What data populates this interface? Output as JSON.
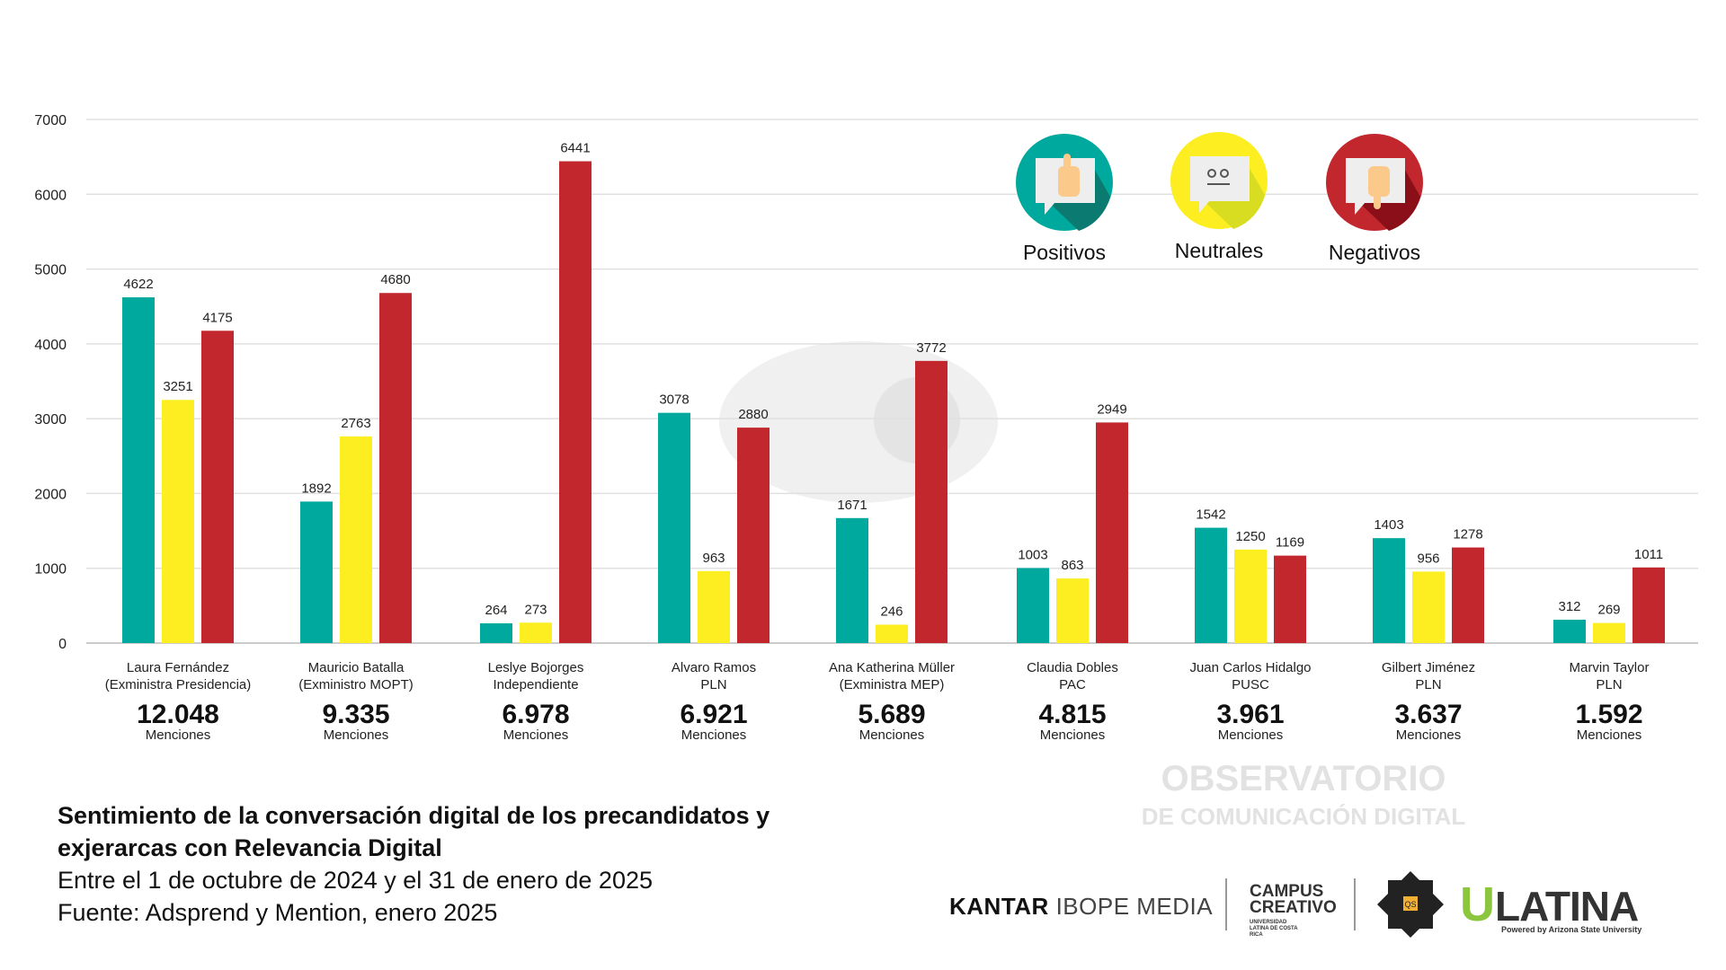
{
  "chart_data": {
    "type": "bar",
    "title": "Sentimiento de la conversación digital de los precandidatos y exjerarcas con Relevancia Digital",
    "subtitle_lines": [
      "Entre el 1 de octubre de 2024 y el 31 de enero de 2025",
      "Fuente: Adsprend y Mention, enero 2025"
    ],
    "ylim": [
      0,
      7000
    ],
    "yticks": [
      0,
      1000,
      2000,
      3000,
      4000,
      5000,
      6000,
      7000
    ],
    "grid": true,
    "legend_position": "top-right",
    "categories": [
      {
        "name": "Laura Fernández",
        "sub": "(Exministra Presidencia)",
        "total": "12.048"
      },
      {
        "name": "Mauricio Batalla",
        "sub": "(Exministro MOPT)",
        "total": "9.335"
      },
      {
        "name": "Leslye Bojorges",
        "sub": "Independiente",
        "total": "6.978"
      },
      {
        "name": "Alvaro Ramos",
        "sub": "PLN",
        "total": "6.921"
      },
      {
        "name": "Ana Katherina Müller",
        "sub": "(Exministra MEP)",
        "total": "5.689"
      },
      {
        "name": "Claudia Dobles",
        "sub": "PAC",
        "total": "4.815"
      },
      {
        "name": "Juan Carlos Hidalgo",
        "sub": "PUSC",
        "total": "3.961"
      },
      {
        "name": "Gilbert Jiménez",
        "sub": "PLN",
        "total": "3.637"
      },
      {
        "name": "Marvin Taylor",
        "sub": "PLN",
        "total": "1.592"
      }
    ],
    "total_unit": "Menciones",
    "series": [
      {
        "name": "Positivos",
        "color": "#00a99d",
        "values": [
          4622,
          1892,
          264,
          3078,
          1671,
          1003,
          1542,
          1403,
          312
        ]
      },
      {
        "name": "Neutrales",
        "color": "#fcee21",
        "values": [
          3251,
          2763,
          273,
          963,
          246,
          863,
          1250,
          956,
          269
        ]
      },
      {
        "name": "Negativos",
        "color": "#c1272d",
        "values": [
          4175,
          4680,
          6441,
          2880,
          3772,
          2949,
          1169,
          1278,
          1011
        ]
      }
    ]
  },
  "watermark": {
    "line1": "OBSERVATORIO",
    "line2": "DE COMUNICACIÓN DIGITAL"
  },
  "logos": {
    "kantar": "KANTAR",
    "ibope": "IBOPE MEDIA",
    "campus1": "CAMPUS",
    "campus2": "CREATIVO",
    "campus_sub": "UNIVERSIDAD LATINA DE COSTA RICA",
    "badge": "QS",
    "ulatina": "LATINA",
    "ulatina_u": "U",
    "ulatina_sub": "Powered by Arizona State University"
  }
}
